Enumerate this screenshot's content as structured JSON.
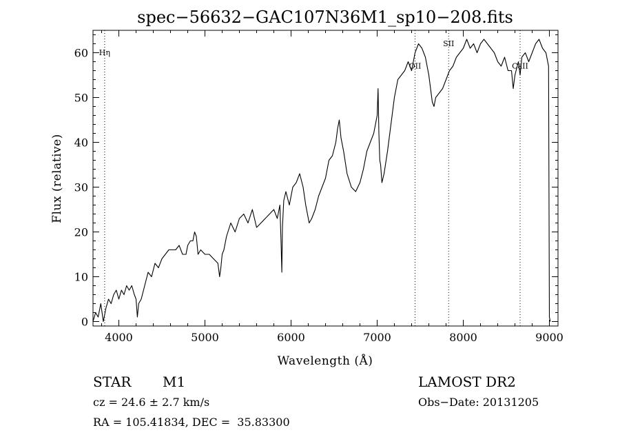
{
  "chart_data": {
    "type": "line",
    "title": "spec−56632−GAC107N36M1_sp10−208.fits",
    "xlabel": "Wavelength (Å)",
    "ylabel": "Flux (relative)",
    "xlim": [
      3700,
      9100
    ],
    "ylim": [
      -1,
      65
    ],
    "x_ticks": [
      4000,
      5000,
      6000,
      7000,
      8000,
      9000
    ],
    "y_ticks": [
      0,
      10,
      20,
      30,
      40,
      50,
      60
    ],
    "grid": false,
    "series": [
      {
        "name": "flux",
        "color": "#000000",
        "x": [
          3700,
          3730,
          3760,
          3790,
          3820,
          3850,
          3880,
          3910,
          3940,
          3970,
          4000,
          4030,
          4060,
          4090,
          4120,
          4150,
          4180,
          4200,
          4215,
          4230,
          4260,
          4300,
          4340,
          4380,
          4420,
          4460,
          4500,
          4540,
          4580,
          4620,
          4660,
          4700,
          4740,
          4780,
          4800,
          4830,
          4860,
          4880,
          4900,
          4920,
          4950,
          5000,
          5050,
          5100,
          5150,
          5170,
          5185,
          5200,
          5220,
          5250,
          5300,
          5350,
          5400,
          5450,
          5500,
          5550,
          5600,
          5650,
          5700,
          5750,
          5800,
          5840,
          5870,
          5885,
          5893,
          5900,
          5915,
          5940,
          5980,
          6020,
          6060,
          6100,
          6140,
          6170,
          6190,
          6210,
          6240,
          6280,
          6320,
          6360,
          6400,
          6440,
          6480,
          6520,
          6540,
          6560,
          6580,
          6610,
          6650,
          6700,
          6750,
          6800,
          6840,
          6880,
          6920,
          6960,
          7000,
          7010,
          7020,
          7030,
          7040,
          7055,
          7080,
          7120,
          7160,
          7200,
          7240,
          7280,
          7320,
          7360,
          7400,
          7440,
          7480,
          7520,
          7560,
          7600,
          7620,
          7640,
          7660,
          7680,
          7720,
          7760,
          7800,
          7840,
          7880,
          7920,
          7960,
          8000,
          8040,
          8080,
          8120,
          8160,
          8200,
          8240,
          8280,
          8320,
          8360,
          8400,
          8440,
          8480,
          8520,
          8560,
          8580,
          8600,
          8640,
          8660,
          8680,
          8720,
          8760,
          8800,
          8840,
          8880,
          8920,
          8960,
          8990,
          9000,
          9010
        ],
        "values": [
          0,
          2,
          1,
          4,
          0,
          3,
          5,
          4,
          6,
          7,
          5,
          7,
          6,
          8,
          7,
          8,
          6,
          5,
          1,
          4,
          5,
          8,
          11,
          10,
          13,
          12,
          14,
          15,
          16,
          16,
          16,
          17,
          15,
          15,
          17,
          18,
          18,
          20,
          19,
          15,
          16,
          15,
          15,
          14,
          13,
          10,
          12,
          15,
          16,
          19,
          22,
          20,
          23,
          24,
          22,
          25,
          21,
          22,
          23,
          24,
          25,
          23,
          26,
          17,
          11,
          21,
          27,
          29,
          26,
          30,
          31,
          33,
          30,
          26,
          24,
          22,
          23,
          25,
          28,
          30,
          32,
          36,
          37,
          40,
          43,
          45,
          41,
          38,
          33,
          30,
          29,
          31,
          34,
          38,
          40,
          42,
          46,
          52,
          42,
          36,
          35,
          31,
          33,
          38,
          44,
          50,
          54,
          55,
          56,
          58,
          56,
          60,
          62,
          61,
          59,
          55,
          52,
          49,
          48,
          50,
          51,
          52,
          54,
          56,
          57,
          59,
          60,
          61,
          63,
          61,
          62,
          60,
          62,
          63,
          62,
          61,
          60,
          58,
          57,
          59,
          56,
          56,
          52,
          55,
          58,
          55,
          59,
          60,
          58,
          60,
          62,
          63,
          61,
          60,
          57,
          1,
          0
        ]
      }
    ],
    "line_markers": [
      {
        "label": "Hη",
        "x": 3835,
        "label_y": 59.5
      },
      {
        "label": "OII",
        "x": 7440,
        "label_y": 56.5
      },
      {
        "label": "SII",
        "x": 7830,
        "label_y": 61.5
      },
      {
        "label": "CaII",
        "x": 8660,
        "label_y": 56.5
      }
    ]
  },
  "info": {
    "object_type": "STAR",
    "subclass": "M1",
    "cz": "cz = 24.6 ± 2.7 km/s",
    "coords": "RA = 105.41834, DEC =  35.83300",
    "survey": "LAMOST DR2",
    "obs_date": "Obs−Date: 20131205"
  }
}
